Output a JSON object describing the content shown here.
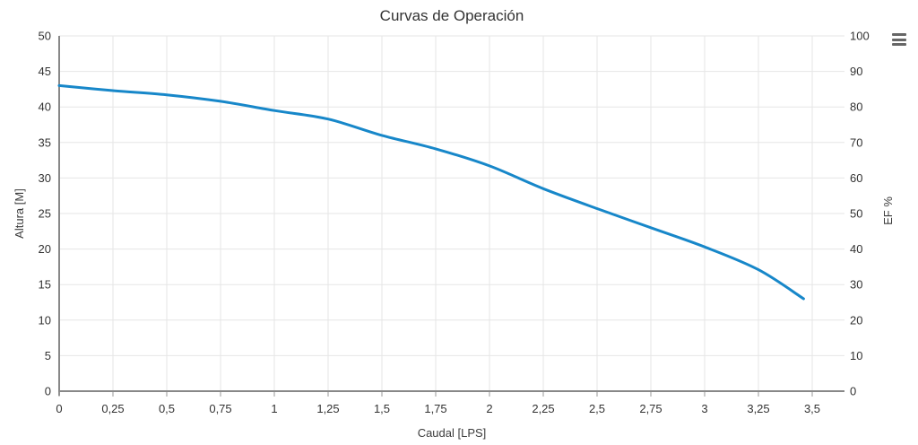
{
  "window": {
    "background": "#ffffff"
  },
  "toolbar": {
    "menu_icon": "hamburger-icon"
  },
  "colors": {
    "line": "#1787c9",
    "grid": "#e6e6e6",
    "axis_line": "#888888",
    "tick_mark": "#999999",
    "tick_label": "#333333",
    "axis_title": "#3c3c3c",
    "title": "#333333",
    "menu_icon": "#666666"
  },
  "chart_data": {
    "type": "line",
    "title": "Curvas de Operación",
    "xlabel": "Caudal [LPS]",
    "ylabel_left": "Altura [M]",
    "ylabel_right": "EF %",
    "xlim": [
      0,
      3.65
    ],
    "ylim_left": [
      0,
      50
    ],
    "ylim_right": [
      0,
      100
    ],
    "grid": true,
    "legend": "none",
    "x_ticks": [
      {
        "v": 0,
        "label": "0"
      },
      {
        "v": 0.25,
        "label": "0,25"
      },
      {
        "v": 0.5,
        "label": "0,5"
      },
      {
        "v": 0.75,
        "label": "0,75"
      },
      {
        "v": 1,
        "label": "1"
      },
      {
        "v": 1.25,
        "label": "1,25"
      },
      {
        "v": 1.5,
        "label": "1,5"
      },
      {
        "v": 1.75,
        "label": "1,75"
      },
      {
        "v": 2,
        "label": "2"
      },
      {
        "v": 2.25,
        "label": "2,25"
      },
      {
        "v": 2.5,
        "label": "2,5"
      },
      {
        "v": 2.75,
        "label": "2,75"
      },
      {
        "v": 3,
        "label": "3"
      },
      {
        "v": 3.25,
        "label": "3,25"
      },
      {
        "v": 3.5,
        "label": "3,5"
      }
    ],
    "y_ticks_left": [
      0,
      5,
      10,
      15,
      20,
      25,
      30,
      35,
      40,
      45,
      50
    ],
    "y_ticks_right": [
      0,
      10,
      20,
      30,
      40,
      50,
      60,
      70,
      80,
      90,
      100
    ],
    "series": [
      {
        "name": "Altura",
        "axis": "left",
        "color": "#1787c9",
        "points": [
          [
            0,
            43.0
          ],
          [
            0.25,
            42.3
          ],
          [
            0.5,
            41.7
          ],
          [
            0.75,
            40.8
          ],
          [
            1,
            39.5
          ],
          [
            1.25,
            38.3
          ],
          [
            1.5,
            36.0
          ],
          [
            1.75,
            34.1
          ],
          [
            2,
            31.7
          ],
          [
            2.25,
            28.5
          ],
          [
            2.5,
            25.7
          ],
          [
            2.75,
            23.0
          ],
          [
            3,
            20.3
          ],
          [
            3.25,
            17.1
          ],
          [
            3.46,
            13.0
          ]
        ]
      }
    ]
  }
}
